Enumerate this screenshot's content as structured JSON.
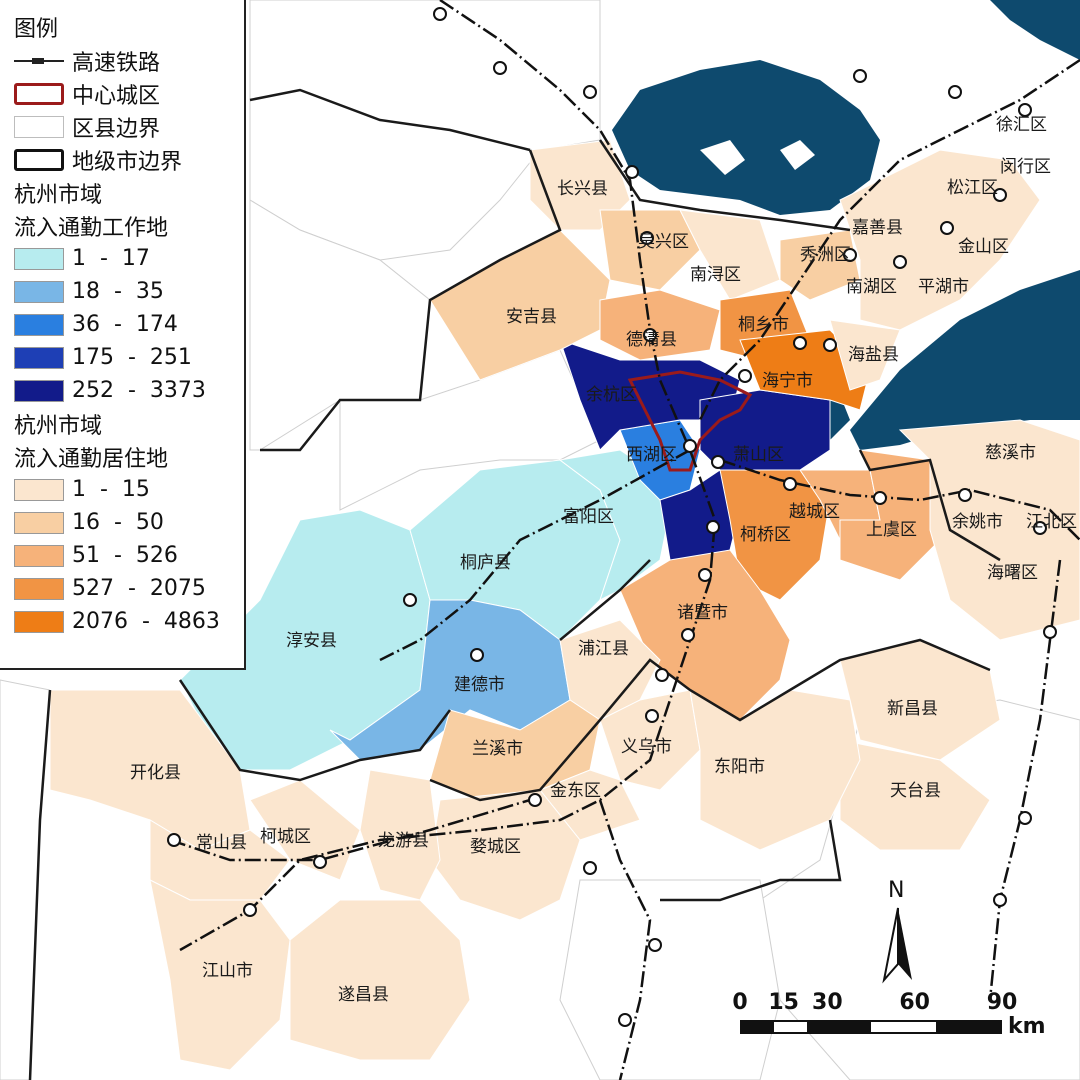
{
  "legend": {
    "title": "图例",
    "rail_label": "高速铁路",
    "core_label": "中心城区",
    "county_label": "区县边界",
    "city_label": "地级市边界",
    "work_title_1": "杭州市域",
    "work_title_2": "流入通勤工作地",
    "work_classes": [
      {
        "label": "1  -  17",
        "color": "#b7ecef"
      },
      {
        "label": "18  -  35",
        "color": "#79b6e6"
      },
      {
        "label": "36  -  174",
        "color": "#2a7fe0"
      },
      {
        "label": "175  -  251",
        "color": "#1e3fb5"
      },
      {
        "label": "252  -  3373",
        "color": "#121b8a"
      }
    ],
    "home_title_1": "杭州市域",
    "home_title_2": "流入通勤居住地",
    "home_classes": [
      {
        "label": "1  -  15",
        "color": "#fbe6cf"
      },
      {
        "label": "16  -  50",
        "color": "#f8cfa3"
      },
      {
        "label": "51  -  526",
        "color": "#f6b27a"
      },
      {
        "label": "527  -  2075",
        "color": "#f19444"
      },
      {
        "label": "2076  -  4863",
        "color": "#ee7d16"
      }
    ]
  },
  "places": {
    "xuhui": "徐汇区",
    "minhang": "闵行区",
    "songjiang": "松江区",
    "changxing": "长兴县",
    "jiashan": "嘉善县",
    "wuxing": "吴兴区",
    "xiuzhou": "秀洲区",
    "jinshan": "金山区",
    "nanxun": "南浔区",
    "nanhu": "南湖区",
    "pinghu": "平湖市",
    "anji": "安吉县",
    "deqing": "德清县",
    "tongxiang": "桐乡市",
    "haiyan": "海盐县",
    "yuhang": "余杭区",
    "haining": "海宁市",
    "xihu": "西湖区",
    "xiaoshan": "萧山区",
    "cixi": "慈溪市",
    "fuyang": "富阳区",
    "yuecheng": "越城区",
    "yuyao": "余姚市",
    "jiangbei": "江北区",
    "keqiao": "柯桥区",
    "shangyu": "上虞区",
    "tonglu": "桐庐县",
    "haishu": "海曙区",
    "zhuji": "诸暨市",
    "chunan": "淳安县",
    "jiande": "建德市",
    "pujiang": "浦江县",
    "xinchang": "新昌县",
    "lanxi": "兰溪市",
    "yiwu": "义乌市",
    "dongyang": "东阳市",
    "kaihua": "开化县",
    "jindong": "金东区",
    "tiantai": "天台县",
    "changshan": "常山县",
    "kecheng": "柯城区",
    "longyou": "龙游县",
    "wucheng": "婺城区",
    "jiangshan": "江山市",
    "suichang": "遂昌县"
  },
  "north_arrow": "N",
  "scale": {
    "ticks": [
      "0",
      "15",
      "30",
      "60",
      "90"
    ],
    "unit": "km"
  },
  "colors": {
    "water": "#0e4a6e",
    "rail": "#111111",
    "core_boundary": "#9b1b1b",
    "county_boundary": "#cfcfcf",
    "city_boundary": "#1a1a1a",
    "no_data": "#ffffff"
  }
}
